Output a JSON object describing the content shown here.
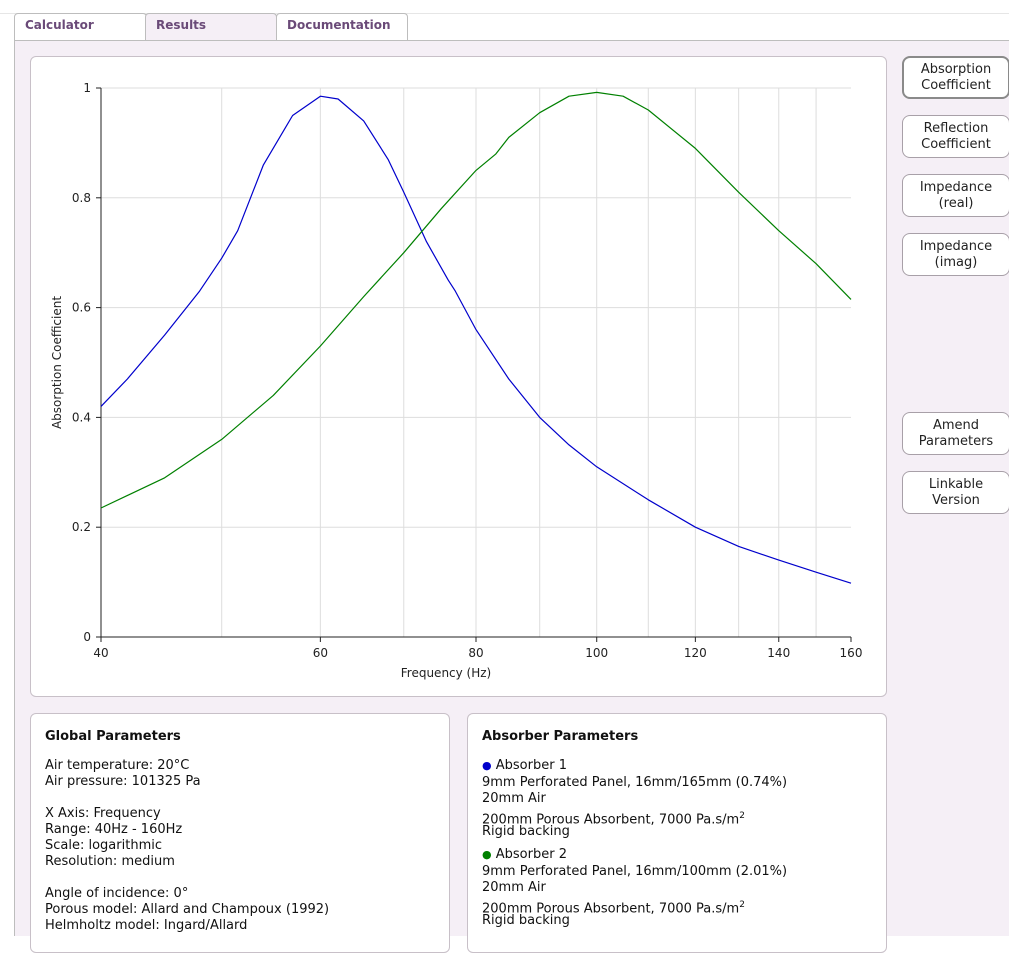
{
  "tabs": [
    {
      "label": "Calculator"
    },
    {
      "label": "Results"
    },
    {
      "label": "Documentation"
    }
  ],
  "side_buttons": [
    {
      "line1": "Absorption",
      "line2": "Coefficient"
    },
    {
      "line1": "Reflection",
      "line2": "Coefficient"
    },
    {
      "line1": "Impedance",
      "line2": "(real)"
    },
    {
      "line1": "Impedance",
      "line2": "(imag)"
    },
    {
      "line1": "Amend",
      "line2": "Parameters"
    },
    {
      "line1": "Linkable",
      "line2": "Version"
    }
  ],
  "colors": {
    "absorber1": "#0000cc",
    "absorber2": "#008000",
    "accent": "#6a4a78"
  },
  "global_params": {
    "title": "Global Parameters",
    "air_temperature": "Air temperature: 20°C",
    "air_pressure": "Air pressure: 101325 Pa",
    "x_axis": "X Axis: Frequency",
    "range": "Range: 40Hz - 160Hz",
    "scale": "Scale: logarithmic",
    "resolution": "Resolution: medium",
    "angle": "Angle of incidence: 0°",
    "porous_model": "Porous model: Allard and Champoux (1992)",
    "helmholtz_model": "Helmholtz model: Ingard/Allard"
  },
  "absorber_params": {
    "title": "Absorber Parameters",
    "absorbers": [
      {
        "name": "Absorber 1",
        "bullet_color": "#0000cc",
        "panel": "9mm Perforated Panel, 16mm/165mm (0.74%)",
        "air": "20mm Air",
        "porous": "200mm Porous Absorbent, 7000 Pa.s/m",
        "porous_sup": "2",
        "backing": "Rigid backing"
      },
      {
        "name": "Absorber 2",
        "bullet_color": "#008000",
        "panel": "9mm Perforated Panel, 16mm/100mm (2.01%)",
        "air": "20mm Air",
        "porous": "200mm Porous Absorbent, 7000 Pa.s/m",
        "porous_sup": "2",
        "backing": "Rigid backing"
      }
    ]
  },
  "chart_data": {
    "type": "line",
    "xlabel": "Frequency (Hz)",
    "ylabel": "Absorption Coefficient",
    "x_scale": "log",
    "xlim": [
      40,
      160
    ],
    "ylim": [
      0,
      1
    ],
    "x_ticks": [
      40,
      60,
      80,
      100,
      120,
      140,
      160
    ],
    "y_ticks": [
      0,
      0.2,
      0.4,
      0.6,
      0.8,
      1
    ],
    "y_tick_labels": [
      "0",
      "0.2",
      "0.4",
      "0.6",
      "0.8",
      "1"
    ],
    "grid": true,
    "series": [
      {
        "name": "Absorber 1",
        "color": "#0000cc",
        "x": [
          40,
          42,
          45,
          48,
          50,
          51.5,
          54,
          57,
          60,
          62,
          65,
          68,
          70,
          73,
          76,
          77,
          80,
          85,
          90,
          95,
          100,
          110,
          120,
          130,
          140,
          150,
          160
        ],
        "y": [
          0.42,
          0.47,
          0.55,
          0.63,
          0.69,
          0.74,
          0.86,
          0.95,
          0.985,
          0.98,
          0.94,
          0.87,
          0.81,
          0.72,
          0.65,
          0.63,
          0.56,
          0.47,
          0.4,
          0.35,
          0.31,
          0.25,
          0.2,
          0.165,
          0.14,
          0.118,
          0.098
        ]
      },
      {
        "name": "Absorber 2",
        "color": "#008000",
        "x": [
          40,
          45,
          50,
          55,
          60,
          65,
          70,
          75,
          80,
          83,
          85,
          90,
          95,
          100,
          105,
          110,
          120,
          130,
          140,
          150,
          160
        ],
        "y": [
          0.235,
          0.29,
          0.36,
          0.44,
          0.53,
          0.62,
          0.7,
          0.78,
          0.85,
          0.88,
          0.91,
          0.955,
          0.985,
          0.992,
          0.985,
          0.96,
          0.89,
          0.81,
          0.74,
          0.68,
          0.615
        ]
      }
    ]
  }
}
